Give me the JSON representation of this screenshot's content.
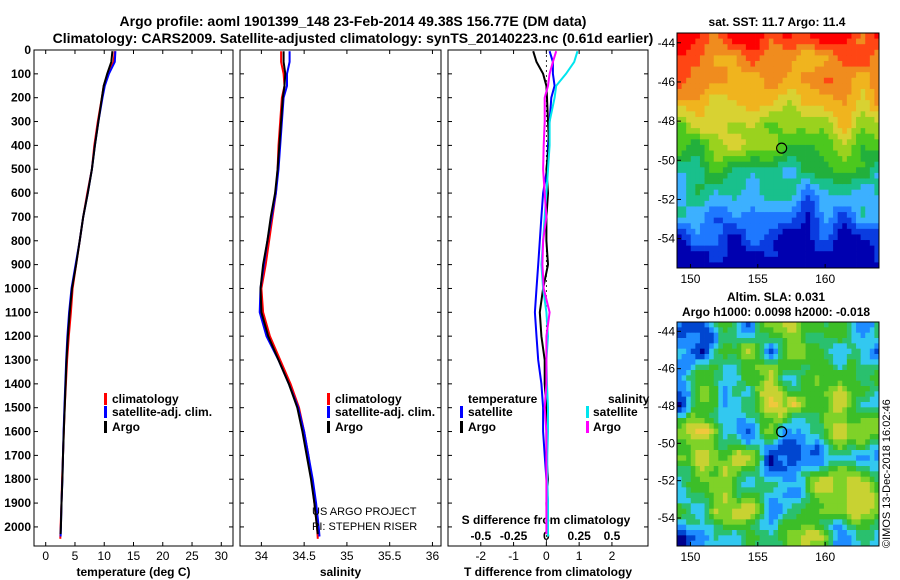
{
  "titles": {
    "line1": "Argo profile: aoml 1901399_148 23-Feb-2014 49.38S 156.77E (DM data)",
    "line2": "Climatology: CARS2009. Satellite-adjusted climatology: synTS_20140223.nc (0.61d earlier)"
  },
  "chart_data": [
    {
      "type": "line",
      "id": "temperature",
      "xlabel": "temperature (deg C)",
      "ylabel": "",
      "xlim": [
        -2,
        32
      ],
      "ylim": [
        2080,
        0
      ],
      "xticks": [
        "0",
        "5",
        "10",
        "15",
        "20",
        "25",
        "30"
      ],
      "xtick_values": [
        0,
        5,
        10,
        15,
        20,
        25,
        30
      ],
      "yticks": [
        "0",
        "100",
        "200",
        "300",
        "400",
        "500",
        "600",
        "700",
        "800",
        "900",
        "1000",
        "1100",
        "1200",
        "1300",
        "1400",
        "1500",
        "1600",
        "1700",
        "1800",
        "1900",
        "2000"
      ],
      "ytick_values": [
        0,
        100,
        200,
        300,
        400,
        500,
        600,
        700,
        800,
        900,
        1000,
        1100,
        1200,
        1300,
        1400,
        1500,
        1600,
        1700,
        1800,
        1900,
        2000
      ],
      "legend": [
        "climatology",
        "satellite-adj. clim.",
        "Argo"
      ],
      "series": [
        {
          "name": "climatology",
          "color": "#ff0000",
          "depth": [
            5,
            50,
            100,
            150,
            200,
            300,
            400,
            500,
            600,
            700,
            800,
            900,
            1000,
            1100,
            1200,
            1300,
            1400,
            1500,
            1600,
            1700,
            1800,
            1900,
            2000,
            2050
          ],
          "values": [
            11.8,
            11.6,
            10.6,
            9.9,
            9.6,
            8.9,
            8.3,
            7.9,
            7.1,
            6.4,
            5.8,
            5.2,
            4.6,
            4.3,
            3.95,
            3.65,
            3.45,
            3.25,
            3.1,
            2.95,
            2.8,
            2.7,
            2.55,
            2.5
          ]
        },
        {
          "name": "satellite-adj. clim.",
          "color": "#0000ff",
          "depth": [
            5,
            50,
            100,
            150,
            200,
            300,
            400,
            500,
            600,
            700,
            800,
            900,
            1000,
            1100,
            1200,
            1300,
            1400,
            1500,
            1600,
            1700,
            1800,
            1900,
            2000,
            2040
          ],
          "values": [
            11.9,
            11.8,
            10.8,
            10.1,
            9.7,
            9.0,
            8.4,
            7.9,
            7.2,
            6.4,
            5.8,
            5.1,
            4.4,
            4.0,
            3.7,
            3.5,
            3.35,
            3.2,
            3.05,
            2.95,
            2.85,
            2.7,
            2.6,
            2.55
          ]
        },
        {
          "name": "Argo",
          "color": "#000000",
          "depth": [
            5,
            50,
            100,
            150,
            200,
            300,
            400,
            500,
            600,
            700,
            800,
            900,
            1000,
            1100,
            1200,
            1300,
            1400,
            1500,
            1600,
            1700,
            1800,
            1900,
            2000,
            2030
          ],
          "values": [
            11.4,
            11.2,
            10.5,
            9.9,
            9.6,
            9.0,
            8.4,
            7.9,
            7.2,
            6.4,
            5.8,
            5.2,
            4.5,
            4.1,
            3.8,
            3.55,
            3.4,
            3.25,
            3.1,
            2.95,
            2.85,
            2.7,
            2.6,
            2.55
          ]
        }
      ]
    },
    {
      "type": "line",
      "id": "salinity",
      "xlabel": "salinity",
      "ylabel": "",
      "xlim": [
        33.75,
        36.1
      ],
      "ylim": [
        2080,
        0
      ],
      "xticks": [
        "34",
        "34.5",
        "35",
        "35.5",
        "36"
      ],
      "xtick_values": [
        34,
        34.5,
        35,
        35.5,
        36
      ],
      "legend": [
        "climatology",
        "satellite-adj. clim.",
        "Argo"
      ],
      "series": [
        {
          "name": "climatology",
          "color": "#ff0000",
          "depth": [
            5,
            50,
            100,
            150,
            200,
            300,
            400,
            500,
            600,
            700,
            800,
            900,
            1000,
            1100,
            1200,
            1300,
            1400,
            1500,
            1600,
            1700,
            1800,
            1900,
            2000,
            2050
          ],
          "values": [
            34.23,
            34.23,
            34.26,
            34.27,
            34.24,
            34.22,
            34.2,
            34.19,
            34.17,
            34.13,
            34.09,
            34.05,
            34.0,
            34.02,
            34.1,
            34.22,
            34.34,
            34.44,
            34.5,
            34.55,
            34.59,
            34.62,
            34.65,
            34.66
          ]
        },
        {
          "name": "satellite-adj. clim.",
          "color": "#0000ff",
          "depth": [
            5,
            50,
            100,
            150,
            200,
            300,
            400,
            500,
            600,
            700,
            800,
            900,
            1000,
            1100,
            1200,
            1300,
            1400,
            1500,
            1600,
            1700,
            1800,
            1900,
            2000,
            2040
          ],
          "values": [
            34.33,
            34.33,
            34.3,
            34.3,
            34.26,
            34.24,
            34.22,
            34.2,
            34.17,
            34.12,
            34.07,
            34.03,
            33.99,
            33.98,
            34.06,
            34.2,
            34.32,
            34.43,
            34.5,
            34.55,
            34.6,
            34.64,
            34.67,
            34.68
          ]
        },
        {
          "name": "Argo",
          "color": "#000000",
          "depth": [
            5,
            50,
            100,
            150,
            200,
            300,
            400,
            500,
            600,
            700,
            800,
            900,
            1000,
            1100,
            1200,
            1300,
            1400,
            1500,
            1600,
            1700,
            1800,
            1900,
            2000,
            2030
          ],
          "values": [
            34.26,
            34.26,
            34.28,
            34.27,
            34.25,
            34.23,
            34.21,
            34.19,
            34.16,
            34.11,
            34.07,
            34.02,
            33.99,
            34.0,
            34.08,
            34.2,
            34.32,
            34.42,
            34.48,
            34.53,
            34.58,
            34.62,
            34.65,
            34.66
          ]
        }
      ]
    },
    {
      "type": "line",
      "id": "difference",
      "xlabel": "T difference from climatology",
      "xlabel2": "S difference from climatology",
      "ylabel": "",
      "xlim": [
        -3,
        3.1
      ],
      "ylim": [
        2080,
        0
      ],
      "xticks": [
        "-2",
        "-1",
        "0",
        "1",
        "2"
      ],
      "xtick_values": [
        -2,
        -1,
        0,
        1,
        2
      ],
      "sticks": [
        "-0.5",
        "-0.25",
        "0",
        "0.25",
        "0.5"
      ],
      "stick_values": [
        -2,
        -1,
        0,
        1,
        2
      ],
      "legend_left_title": "temperature",
      "legend_right_title": "salinity",
      "legend": [
        "satellite",
        "Argo",
        "satellite",
        "Argo"
      ],
      "series": [
        {
          "name": "T satellite",
          "color": "#0000ff",
          "depth": [
            5,
            50,
            100,
            150,
            200,
            300,
            400,
            500,
            600,
            700,
            800,
            900,
            1000,
            1100,
            1200,
            1300,
            1400,
            1500,
            1600,
            1700,
            1800,
            1900,
            2000,
            2040
          ],
          "values": [
            0.1,
            0.2,
            0.2,
            0.25,
            0.15,
            0.1,
            0.05,
            0.02,
            -0.1,
            -0.15,
            -0.2,
            -0.25,
            -0.3,
            -0.35,
            -0.3,
            -0.25,
            -0.15,
            -0.1,
            -0.1,
            -0.05,
            0.0,
            0.05,
            0.05,
            0.05
          ]
        },
        {
          "name": "T Argo",
          "color": "#000000",
          "depth": [
            5,
            50,
            100,
            150,
            200,
            300,
            400,
            500,
            600,
            700,
            800,
            900,
            1000,
            1100,
            1200,
            1300,
            1400,
            1500,
            1600,
            1700,
            1800,
            1900,
            2000,
            2030
          ],
          "values": [
            -0.4,
            -0.3,
            -0.1,
            0.0,
            0.02,
            0.05,
            0.08,
            0.0,
            0.05,
            0.0,
            0.0,
            0.05,
            -0.1,
            -0.2,
            -0.15,
            -0.05,
            -0.05,
            0.0,
            0.0,
            0.0,
            0.05,
            0.0,
            0.02,
            0.02
          ]
        },
        {
          "name": "S satellite",
          "color": "#00e5ee",
          "depth": [
            5,
            50,
            100,
            150,
            200,
            300,
            400,
            500,
            600,
            700,
            800,
            900,
            1000,
            1100,
            1200,
            1300,
            1400,
            1500,
            1600,
            1700,
            1800,
            1900,
            2000,
            2040
          ],
          "values": [
            0.95,
            0.85,
            0.6,
            0.3,
            0.25,
            0.1,
            0.1,
            0.05,
            0.0,
            -0.05,
            -0.1,
            -0.15,
            -0.1,
            0.0,
            0.05,
            0.0,
            0.02,
            0.05,
            0.05,
            0.03,
            0.03,
            0.05,
            0.05,
            0.05
          ]
        },
        {
          "name": "S Argo",
          "color": "#ff00ff",
          "depth": [
            5,
            50,
            100,
            150,
            200,
            300,
            400,
            500,
            600,
            700,
            800,
            900,
            1000,
            1100,
            1200,
            1300,
            1400,
            1500,
            1600,
            1700,
            1800,
            1900,
            2000,
            2030
          ],
          "values": [
            0.3,
            0.2,
            0.1,
            0.05,
            -0.05,
            -0.05,
            -0.08,
            -0.1,
            -0.05,
            0.0,
            -0.1,
            -0.12,
            -0.08,
            0.1,
            0.0,
            0.0,
            0.0,
            -0.05,
            0.0,
            0.0,
            0.0,
            0.0,
            0.0,
            0.0
          ]
        }
      ]
    },
    {
      "type": "heatmap",
      "id": "sst_map",
      "title": "sat. SST: 11.7 Argo: 11.4",
      "xlim": [
        149,
        164
      ],
      "ylim": [
        -55.5,
        -43.5
      ],
      "xticks": [
        "150",
        "155",
        "160"
      ],
      "xtick_values": [
        150,
        155,
        160
      ],
      "yticks": [
        "-44",
        "-46",
        "-48",
        "-50",
        "-52",
        "-54"
      ],
      "ytick_values": [
        -44,
        -46,
        -48,
        -50,
        -52,
        -54
      ],
      "marker": {
        "lon": 156.77,
        "lat": -49.38
      }
    },
    {
      "type": "heatmap",
      "id": "sla_map",
      "title": "Altim. SLA: 0.031",
      "subtitle": "Argo h1000: 0.0098 h2000: -0.018",
      "xlim": [
        149,
        164
      ],
      "ylim": [
        -55.5,
        -43.5
      ],
      "xticks": [
        "150",
        "155",
        "160"
      ],
      "xtick_values": [
        150,
        155,
        160
      ],
      "yticks": [
        "-44",
        "-46",
        "-48",
        "-50",
        "-52",
        "-54"
      ],
      "ytick_values": [
        -44,
        -46,
        -48,
        -50,
        -52,
        -54
      ],
      "marker": {
        "lon": 156.77,
        "lat": -49.38
      }
    }
  ],
  "annotations": {
    "project": "US ARGO PROJECT",
    "pi": "PI: STEPHEN RISER",
    "footer": "©IMOS 13-Dec-2018 16:02:46"
  }
}
